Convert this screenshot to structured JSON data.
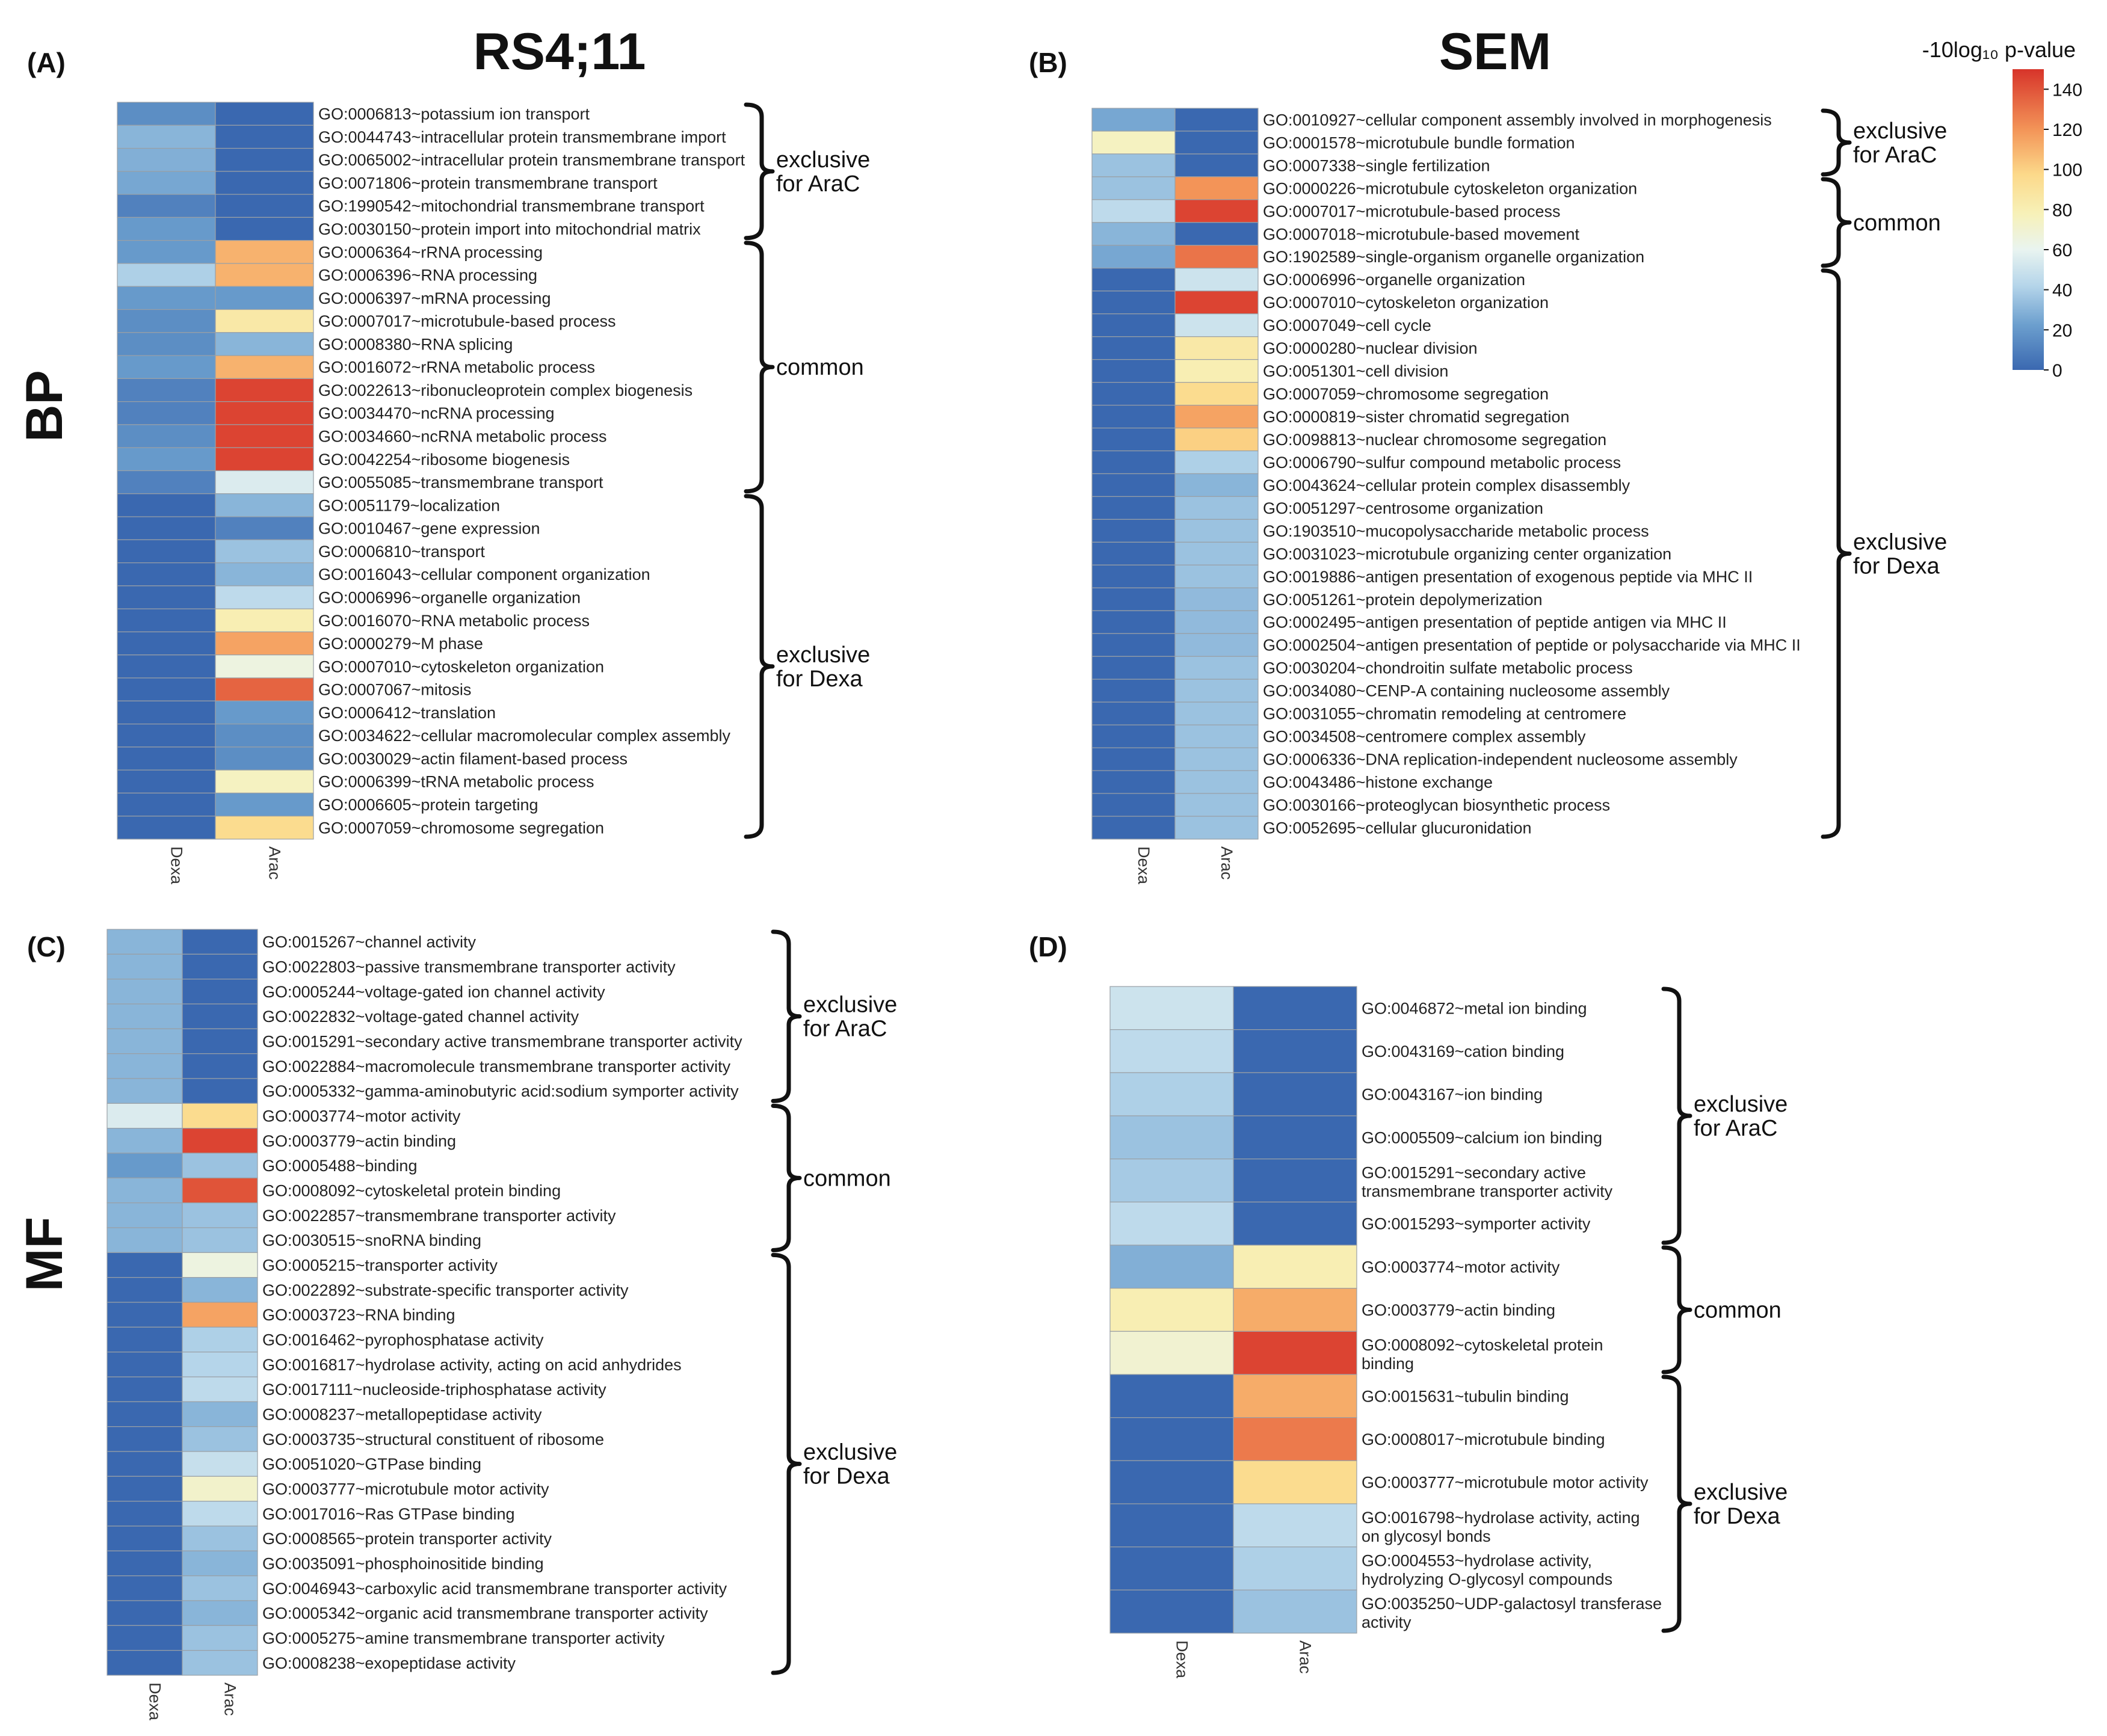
{
  "figure": {
    "col_titles": [
      "RS4;11",
      "SEM"
    ],
    "row_titles": [
      "BP",
      "MF"
    ],
    "legend": {
      "title": "-10log₁₀ p-value",
      "min": 0,
      "max": 150,
      "ticks": [
        "140",
        "120",
        "100",
        "80",
        "60",
        "40",
        "20",
        "0"
      ],
      "tick_values": [
        140,
        120,
        100,
        80,
        60,
        40,
        20,
        0
      ],
      "colors": [
        "#3a68b0",
        "#f5f1b6",
        "#d7342a"
      ]
    }
  },
  "chart_data": [
    {
      "type": "heatmap",
      "panel_label": "(A)",
      "columns": [
        "Dexa",
        "Arac"
      ],
      "rows": [
        "GO:0006813~potassium ion transport",
        "GO:0044743~intracellular protein transmembrane import",
        "GO:0065002~intracellular protein transmembrane transport",
        "GO:0071806~protein transmembrane transport",
        "GO:1990542~mitochondrial transmembrane transport",
        "GO:0030150~protein import into mitochondrial matrix",
        "GO:0006364~rRNA processing",
        "GO:0006396~RNA processing",
        "GO:0006397~mRNA processing",
        "GO:0007017~microtubule-based process",
        "GO:0008380~RNA splicing",
        "GO:0016072~rRNA metabolic process",
        "GO:0022613~ribonucleoprotein complex biogenesis",
        "GO:0034470~ncRNA processing",
        "GO:0034660~ncRNA metabolic process",
        "GO:0042254~ribosome biogenesis",
        "GO:0055085~transmembrane transport",
        "GO:0051179~localization",
        "GO:0010467~gene expression",
        "GO:0006810~transport",
        "GO:0016043~cellular component organization",
        "GO:0006996~organelle organization",
        "GO:0016070~RNA metabolic process",
        "GO:0000279~M phase",
        "GO:0007010~cytoskeleton organization",
        "GO:0007067~mitosis",
        "GO:0006412~translation",
        "GO:0034622~cellular macromolecular complex assembly",
        "GO:0030029~actin filament-based process",
        "GO:0006399~tRNA metabolic process",
        "GO:0006605~protein targeting",
        "GO:0007059~chromosome segregation"
      ],
      "values": [
        [
          15,
          0
        ],
        [
          30,
          0
        ],
        [
          28,
          0
        ],
        [
          25,
          0
        ],
        [
          10,
          0
        ],
        [
          20,
          0
        ],
        [
          20,
          110
        ],
        [
          40,
          110
        ],
        [
          20,
          20
        ],
        [
          15,
          85
        ],
        [
          15,
          30
        ],
        [
          20,
          110
        ],
        [
          10,
          145
        ],
        [
          10,
          145
        ],
        [
          15,
          145
        ],
        [
          20,
          145
        ],
        [
          10,
          55
        ],
        [
          0,
          30
        ],
        [
          0,
          10
        ],
        [
          0,
          35
        ],
        [
          0,
          30
        ],
        [
          0,
          45
        ],
        [
          0,
          80
        ],
        [
          0,
          115
        ],
        [
          0,
          65
        ],
        [
          0,
          135
        ],
        [
          0,
          20
        ],
        [
          0,
          15
        ],
        [
          0,
          15
        ],
        [
          0,
          75
        ],
        [
          0,
          20
        ],
        [
          0,
          95
        ]
      ],
      "groups": [
        {
          "label": [
            "exclusive",
            "for AraC"
          ],
          "start": 0,
          "end": 5
        },
        {
          "label": [
            "common"
          ],
          "start": 6,
          "end": 16
        },
        {
          "label": [
            "exclusive",
            "for Dexa"
          ],
          "start": 17,
          "end": 31
        }
      ]
    },
    {
      "type": "heatmap",
      "panel_label": "(B)",
      "columns": [
        "Dexa",
        "Arac"
      ],
      "rows": [
        "GO:0010927~cellular component assembly involved in morphogenesis",
        "GO:0001578~microtubule bundle formation",
        "GO:0007338~single fertilization",
        "GO:0000226~microtubule cytoskeleton organization",
        "GO:0007017~microtubule-based process",
        "GO:0007018~microtubule-based movement",
        "GO:1902589~single-organism organelle organization",
        "GO:0006996~organelle organization",
        "GO:0007010~cytoskeleton organization",
        "GO:0007049~cell cycle",
        "GO:0000280~nuclear division",
        "GO:0051301~cell division",
        "GO:0007059~chromosome segregation",
        "GO:0000819~sister chromatid segregation",
        "GO:0098813~nuclear chromosome segregation",
        "GO:0006790~sulfur compound metabolic process",
        "GO:0043624~cellular protein complex disassembly",
        "GO:0051297~centrosome organization",
        "GO:1903510~mucopolysaccharide metabolic process",
        "GO:0031023~microtubule organizing center organization",
        "GO:0019886~antigen presentation of exogenous peptide via MHC II",
        "GO:0051261~protein depolymerization",
        "GO:0002495~antigen presentation of peptide antigen via MHC II",
        "GO:0002504~antigen presentation of peptide or polysaccharide via MHC II",
        "GO:0030204~chondroitin sulfate metabolic process",
        "GO:0034080~CENP-A containing nucleosome assembly",
        "GO:0031055~chromatin remodeling at centromere",
        "GO:0034508~centromere complex assembly",
        "GO:0006336~DNA replication-independent nucleosome assembly",
        "GO:0043486~histone exchange",
        "GO:0030166~proteoglycan biosynthetic process",
        "GO:0052695~cellular glucuronidation"
      ],
      "values": [
        [
          25,
          0
        ],
        [
          75,
          0
        ],
        [
          35,
          0
        ],
        [
          35,
          120
        ],
        [
          45,
          145
        ],
        [
          30,
          0
        ],
        [
          25,
          130
        ],
        [
          0,
          50
        ],
        [
          0,
          145
        ],
        [
          0,
          50
        ],
        [
          0,
          85
        ],
        [
          0,
          80
        ],
        [
          0,
          95
        ],
        [
          0,
          115
        ],
        [
          0,
          100
        ],
        [
          0,
          40
        ],
        [
          0,
          30
        ],
        [
          0,
          35
        ],
        [
          0,
          35
        ],
        [
          0,
          35
        ],
        [
          0,
          35
        ],
        [
          0,
          32
        ],
        [
          0,
          32
        ],
        [
          0,
          32
        ],
        [
          0,
          35
        ],
        [
          0,
          35
        ],
        [
          0,
          35
        ],
        [
          0,
          35
        ],
        [
          0,
          35
        ],
        [
          0,
          35
        ],
        [
          0,
          35
        ],
        [
          0,
          35
        ]
      ],
      "groups": [
        {
          "label": [
            "exclusive",
            "for AraC"
          ],
          "start": 0,
          "end": 2
        },
        {
          "label": [
            "common"
          ],
          "start": 3,
          "end": 6
        },
        {
          "label": [
            "exclusive",
            "for Dexa"
          ],
          "start": 7,
          "end": 31
        }
      ]
    },
    {
      "type": "heatmap",
      "panel_label": "(C)",
      "columns": [
        "Dexa",
        "Arac"
      ],
      "rows": [
        "GO:0015267~channel activity",
        "GO:0022803~passive transmembrane transporter activity",
        "GO:0005244~voltage-gated ion channel activity",
        "GO:0022832~voltage-gated channel activity",
        "GO:0015291~secondary active transmembrane transporter activity",
        "GO:0022884~macromolecule transmembrane transporter activity",
        "GO:0005332~gamma-aminobutyric acid:sodium symporter activity",
        "GO:0003774~motor activity",
        "GO:0003779~actin binding",
        "GO:0005488~binding",
        "GO:0008092~cytoskeletal protein binding",
        "GO:0022857~transmembrane transporter activity",
        "GO:0030515~snoRNA binding",
        "GO:0005215~transporter activity",
        "GO:0022892~substrate-specific transporter activity",
        "GO:0003723~RNA binding",
        "GO:0016462~pyrophosphatase activity",
        "GO:0016817~hydrolase activity, acting on acid anhydrides",
        "GO:0017111~nucleoside-triphosphatase activity",
        "GO:0008237~metallopeptidase activity",
        "GO:0003735~structural constituent of ribosome",
        "GO:0051020~GTPase binding",
        "GO:0003777~microtubule motor activity",
        "GO:0017016~Ras GTPase binding",
        "GO:0008565~protein transporter activity",
        "GO:0035091~phosphoinositide binding",
        "GO:0046943~carboxylic acid transmembrane transporter activity",
        "GO:0005342~organic acid transmembrane transporter activity",
        "GO:0005275~amine transmembrane transporter activity",
        "GO:0008238~exopeptidase activity"
      ],
      "values": [
        [
          30,
          0
        ],
        [
          30,
          0
        ],
        [
          30,
          0
        ],
        [
          30,
          0
        ],
        [
          30,
          0
        ],
        [
          30,
          0
        ],
        [
          30,
          0
        ],
        [
          55,
          95
        ],
        [
          30,
          145
        ],
        [
          20,
          35
        ],
        [
          30,
          140
        ],
        [
          30,
          35
        ],
        [
          30,
          35
        ],
        [
          0,
          65
        ],
        [
          0,
          30
        ],
        [
          0,
          115
        ],
        [
          0,
          40
        ],
        [
          0,
          42
        ],
        [
          0,
          45
        ],
        [
          0,
          30
        ],
        [
          0,
          35
        ],
        [
          0,
          48
        ],
        [
          0,
          72
        ],
        [
          0,
          45
        ],
        [
          0,
          35
        ],
        [
          0,
          30
        ],
        [
          0,
          35
        ],
        [
          0,
          30
        ],
        [
          0,
          35
        ],
        [
          0,
          35
        ]
      ],
      "groups": [
        {
          "label": [
            "exclusive",
            "for AraC"
          ],
          "start": 0,
          "end": 6
        },
        {
          "label": [
            "common"
          ],
          "start": 7,
          "end": 12
        },
        {
          "label": [
            "exclusive",
            "for Dexa"
          ],
          "start": 13,
          "end": 29
        }
      ]
    },
    {
      "type": "heatmap",
      "panel_label": "(D)",
      "columns": [
        "Dexa",
        "Arac"
      ],
      "rows": [
        "GO:0046872~metal ion binding",
        "GO:0043169~cation binding",
        "GO:0043167~ion binding",
        "GO:0005509~calcium ion binding",
        "GO:0015291~secondary active transmembrane transporter activity",
        "GO:0015293~symporter activity",
        "GO:0003774~motor activity",
        "GO:0003779~actin binding",
        "GO:0008092~cytoskeletal protein binding",
        "GO:0015631~tubulin binding",
        "GO:0008017~microtubule binding",
        "GO:0003777~microtubule motor activity",
        "GO:0016798~hydrolase activity, acting on glycosyl bonds",
        "GO:0004553~hydrolase activity, hydrolyzing O-glycosyl compounds",
        "GO:0035250~UDP-galactosyl transferase activity"
      ],
      "values": [
        [
          50,
          0
        ],
        [
          45,
          0
        ],
        [
          40,
          0
        ],
        [
          35,
          0
        ],
        [
          38,
          0
        ],
        [
          45,
          0
        ],
        [
          28,
          80
        ],
        [
          80,
          112
        ],
        [
          70,
          145
        ],
        [
          0,
          112
        ],
        [
          0,
          128
        ],
        [
          0,
          95
        ],
        [
          0,
          45
        ],
        [
          0,
          40
        ],
        [
          0,
          35
        ]
      ],
      "groups": [
        {
          "label": [
            "exclusive",
            "for AraC"
          ],
          "start": 0,
          "end": 5
        },
        {
          "label": [
            "common"
          ],
          "start": 6,
          "end": 8
        },
        {
          "label": [
            "exclusive",
            "for Dexa"
          ],
          "start": 9,
          "end": 14
        }
      ]
    }
  ]
}
